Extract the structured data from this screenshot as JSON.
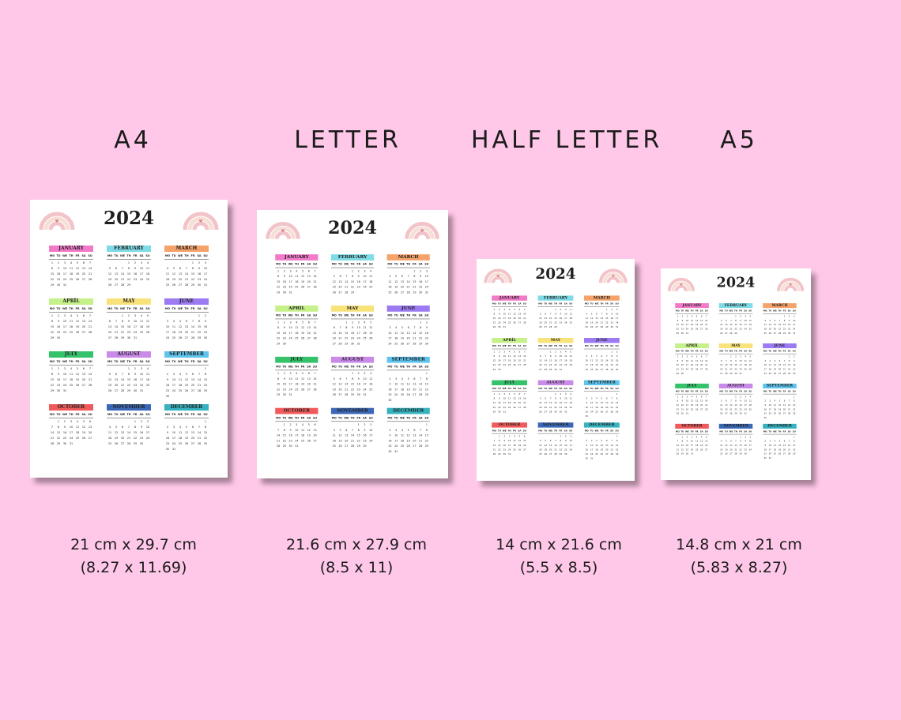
{
  "formats": [
    {
      "title": "A4",
      "size_cm": "21 cm x 29.7 cm",
      "size_in": "(8.27 x 11.69)"
    },
    {
      "title": "LETTER",
      "size_cm": "21.6 cm x 27.9 cm",
      "size_in": "(8.5 x 11)"
    },
    {
      "title": "HALF LETTER",
      "size_cm": "14 cm x 21.6 cm",
      "size_in": "(5.5 x 8.5)"
    },
    {
      "title": "A5",
      "size_cm": "14.8 cm x 21 cm",
      "size_in": "(5.83 x 8.27)"
    }
  ],
  "calendar": {
    "year": "2024",
    "weekdays": [
      "MO",
      "TU",
      "WE",
      "TH",
      "FR",
      "SA",
      "SU"
    ],
    "months": [
      {
        "name": "JANUARY",
        "color": "#f27ac9",
        "offset": 0,
        "days": 31
      },
      {
        "name": "FEBRUARY",
        "color": "#7fdbe6",
        "offset": 3,
        "days": 29
      },
      {
        "name": "MARCH",
        "color": "#f6a36b",
        "offset": 4,
        "days": 31
      },
      {
        "name": "APRİL",
        "color": "#c6f08a",
        "offset": 0,
        "days": 30
      },
      {
        "name": "MAY",
        "color": "#f8e27a",
        "offset": 2,
        "days": 31
      },
      {
        "name": "JUNE",
        "color": "#9b7af2",
        "offset": 5,
        "days": 30
      },
      {
        "name": "JULY",
        "color": "#34c36b",
        "offset": 0,
        "days": 31
      },
      {
        "name": "AUGUST",
        "color": "#c98ae8",
        "offset": 3,
        "days": 31
      },
      {
        "name": "SEPTEMBER",
        "color": "#5ec4ee",
        "offset": 6,
        "days": 30
      },
      {
        "name": "OCTOBER",
        "color": "#f05a5a",
        "offset": 1,
        "days": 31
      },
      {
        "name": "NOVEMBER",
        "color": "#3b68b6",
        "offset": 4,
        "days": 30
      },
      {
        "name": "DECEMBER",
        "color": "#35b3c0",
        "offset": 6,
        "days": 31
      }
    ]
  },
  "colors": {
    "background": "#ffc8e8",
    "rainbow": [
      "#f2c3c8",
      "#f6dfd6",
      "#d98b8c"
    ]
  }
}
